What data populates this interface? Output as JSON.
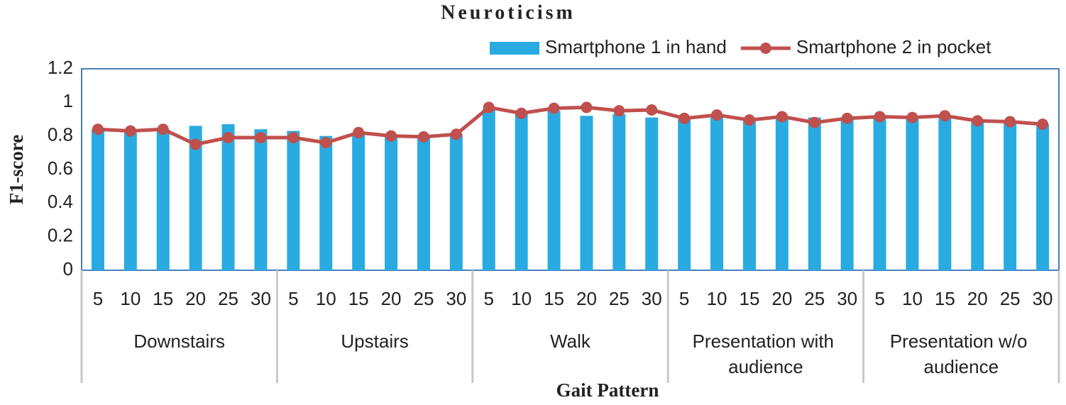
{
  "chart_data": {
    "type": "bar_line",
    "title": "Neuroticism",
    "x_label": "Gait Pattern",
    "y_label": "F1-score",
    "groups": [
      "Downstairs",
      "Upstairs",
      "Walk",
      "Presentation with audience",
      "Presentation w/o audience"
    ],
    "categories": [
      "5",
      "10",
      "15",
      "20",
      "25",
      "30",
      "5",
      "10",
      "15",
      "20",
      "25",
      "30",
      "5",
      "10",
      "15",
      "20",
      "25",
      "30",
      "5",
      "10",
      "15",
      "20",
      "25",
      "30",
      "5",
      "10",
      "15",
      "20",
      "25",
      "30"
    ],
    "series": [
      {
        "name": "Smartphone 1 in hand",
        "type": "bar",
        "color": "#29abe2",
        "values": [
          0.84,
          0.82,
          0.84,
          0.86,
          0.87,
          0.84,
          0.83,
          0.8,
          0.82,
          0.8,
          0.8,
          0.81,
          0.96,
          0.93,
          0.95,
          0.92,
          0.93,
          0.91,
          0.9,
          0.91,
          0.89,
          0.91,
          0.91,
          0.9,
          0.92,
          0.9,
          0.91,
          0.89,
          0.88,
          0.87
        ]
      },
      {
        "name": "Smartphone 2 in pocket",
        "type": "line",
        "color": "#c0504d",
        "values": [
          0.84,
          0.83,
          0.84,
          0.75,
          0.79,
          0.79,
          0.79,
          0.76,
          0.82,
          0.8,
          0.795,
          0.81,
          0.97,
          0.935,
          0.965,
          0.97,
          0.95,
          0.955,
          0.905,
          0.925,
          0.895,
          0.915,
          0.88,
          0.905,
          0.915,
          0.91,
          0.92,
          0.89,
          0.885,
          0.87
        ]
      }
    ],
    "ylim": [
      0,
      1.2
    ],
    "yticks": [
      0,
      0.2,
      0.4,
      0.6,
      0.8,
      1,
      1.2
    ],
    "grid": false,
    "legend": "top-right"
  }
}
